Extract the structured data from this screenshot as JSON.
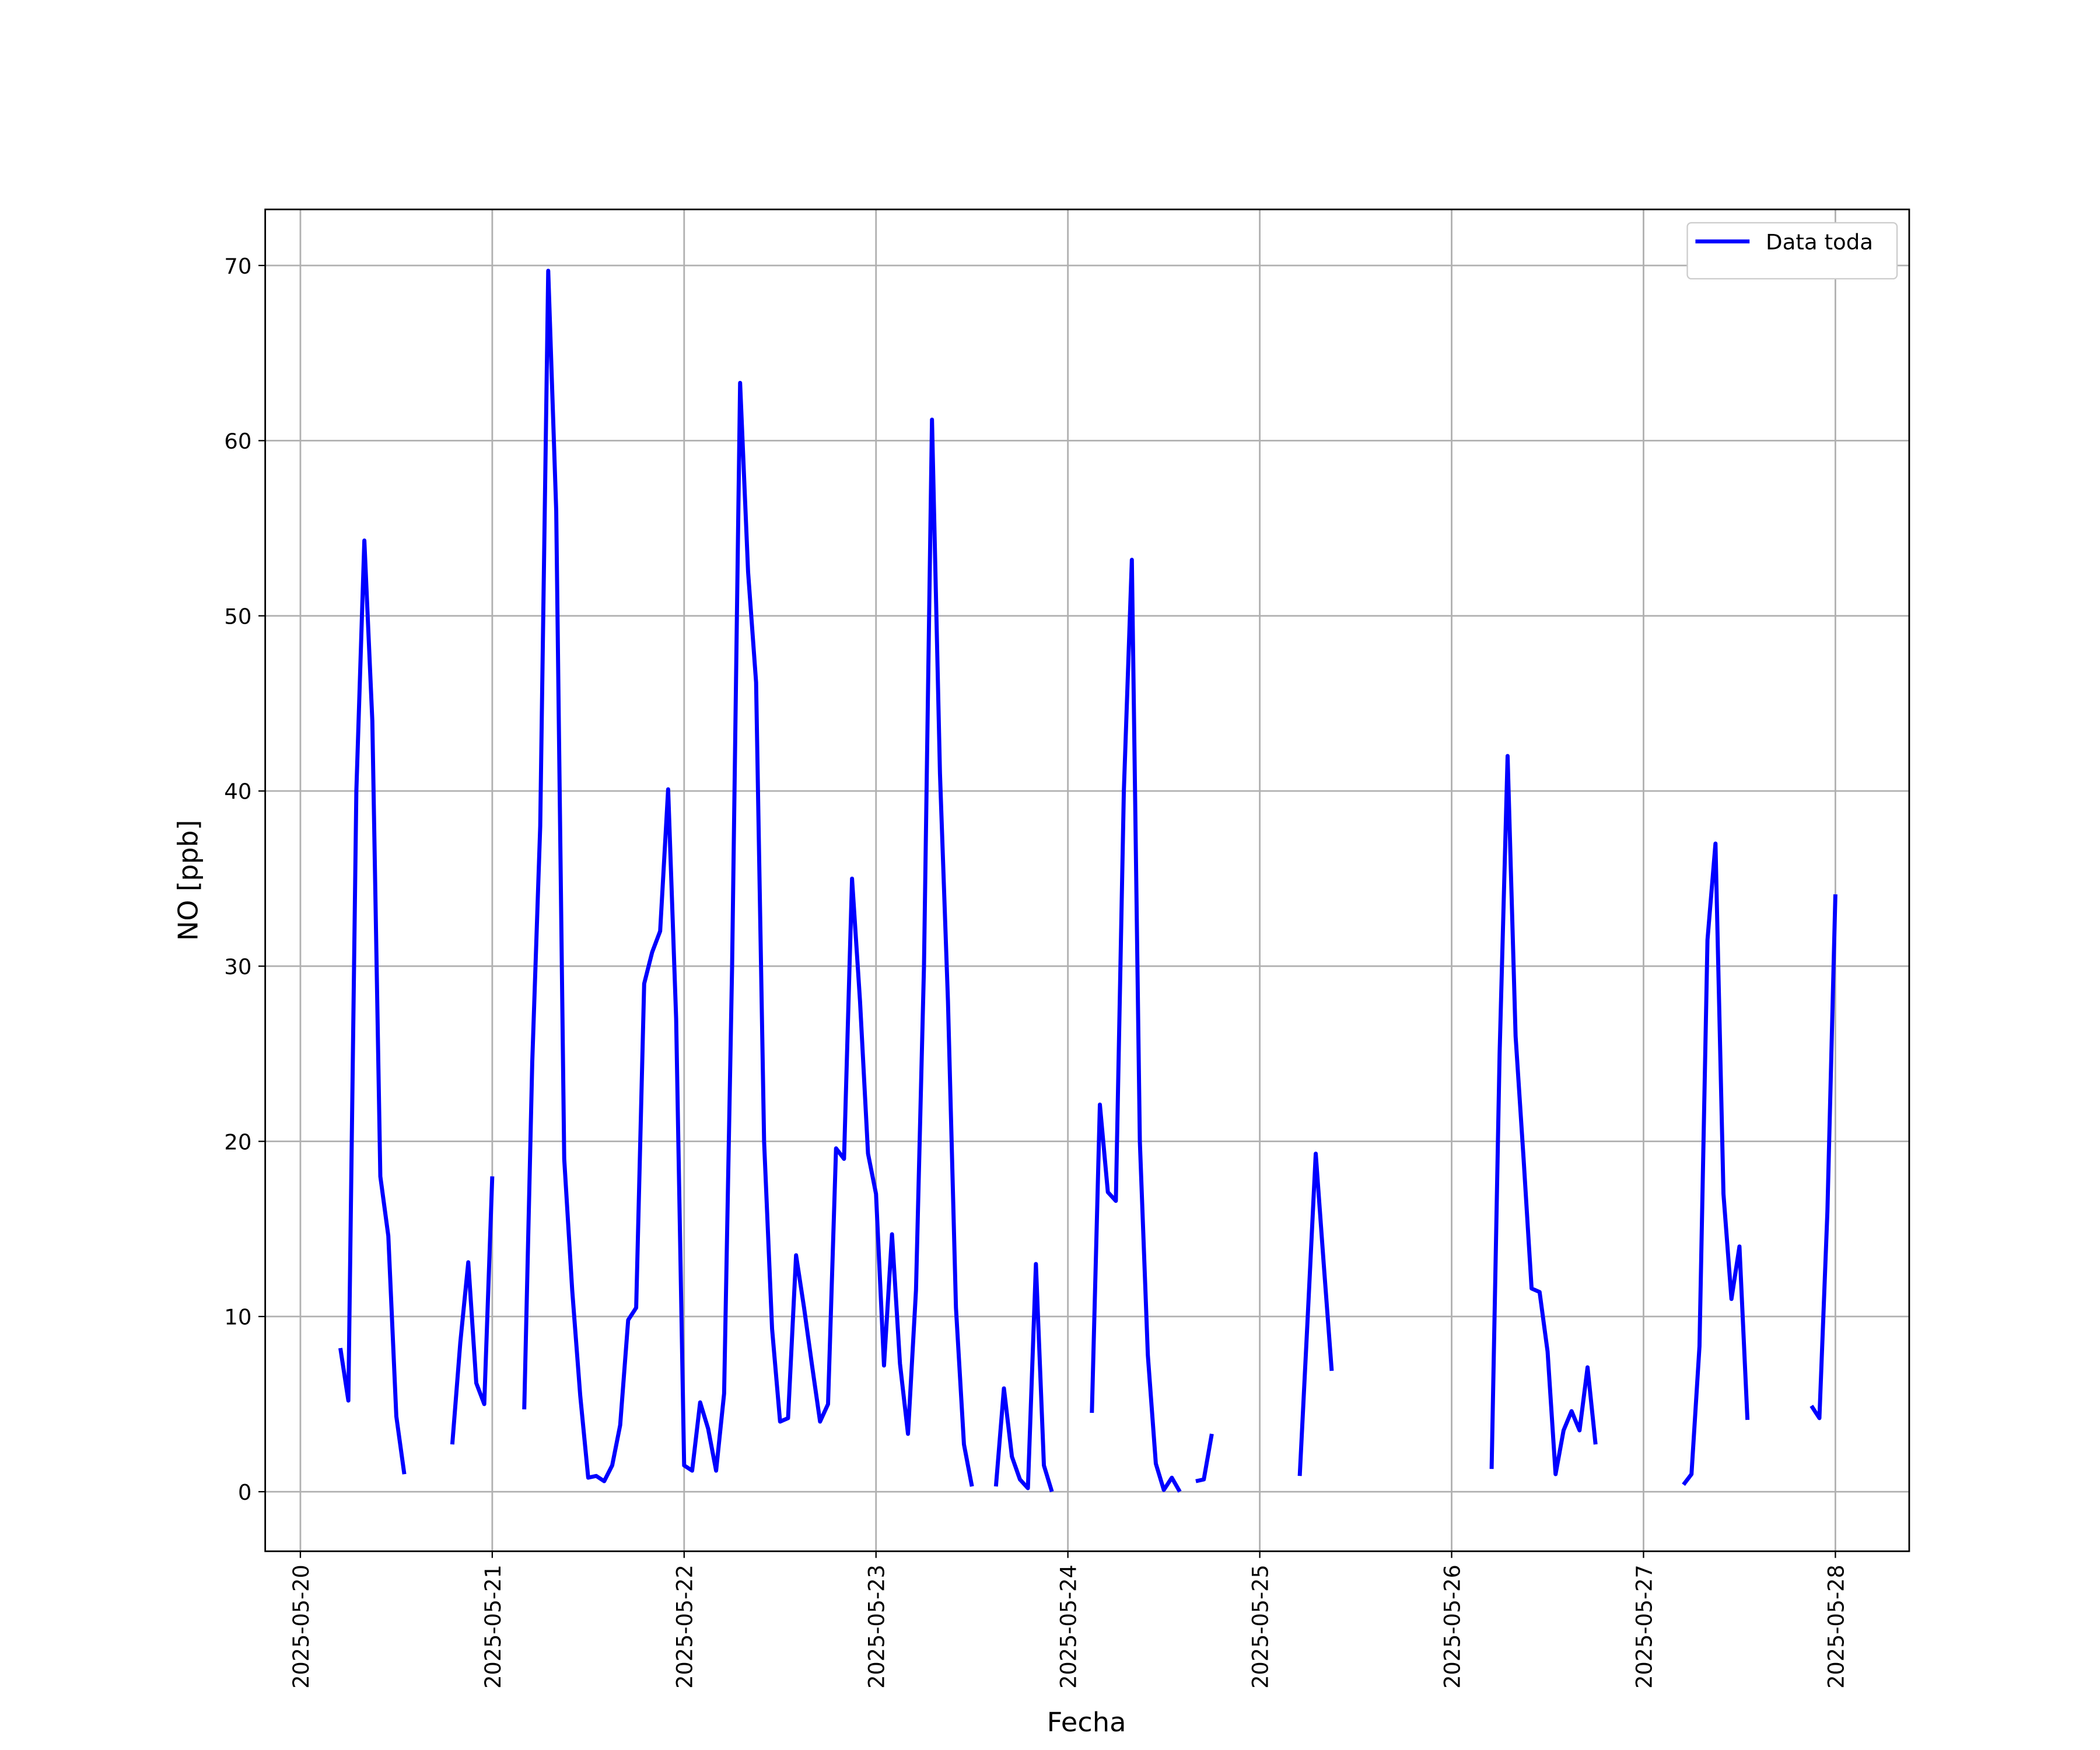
{
  "chart_data": {
    "type": "line",
    "xlabel": "Fecha",
    "ylabel": "NO [ppb]",
    "xlim": [
      "2025-05-19 19:36",
      "2025-05-28 09:14"
    ],
    "xticks": [
      "2025-05-20",
      "2025-05-21",
      "2025-05-22",
      "2025-05-23",
      "2025-05-24",
      "2025-05-25",
      "2025-05-26",
      "2025-05-27",
      "2025-05-28"
    ],
    "ylim": [
      -3.4,
      73.2
    ],
    "yticks": [
      0,
      10,
      20,
      30,
      40,
      50,
      60,
      70
    ],
    "grid": true,
    "legend": "upper right",
    "x": [
      "2025-05-20 05:00",
      "2025-05-20 06:00",
      "2025-05-20 07:00",
      "2025-05-20 08:00",
      "2025-05-20 09:00",
      "2025-05-20 10:00",
      "2025-05-20 11:00",
      "2025-05-20 12:00",
      "2025-05-20 13:00",
      "2025-05-20 16:00",
      "2025-05-20 19:00",
      "2025-05-20 20:00",
      "2025-05-20 21:00",
      "2025-05-20 22:00",
      "2025-05-20 23:00",
      "2025-05-21 00:00",
      "2025-05-21 02:00",
      "2025-05-21 04:00",
      "2025-05-21 05:00",
      "2025-05-21 06:00",
      "2025-05-21 07:00",
      "2025-05-21 08:00",
      "2025-05-21 09:00",
      "2025-05-21 10:00",
      "2025-05-21 11:00",
      "2025-05-21 12:00",
      "2025-05-21 13:00",
      "2025-05-21 14:00",
      "2025-05-21 15:00",
      "2025-05-21 16:00",
      "2025-05-21 17:00",
      "2025-05-21 18:00",
      "2025-05-21 19:00",
      "2025-05-21 20:00",
      "2025-05-21 21:00",
      "2025-05-21 22:00",
      "2025-05-21 23:00",
      "2025-05-22 00:00",
      "2025-05-22 01:00",
      "2025-05-22 02:00",
      "2025-05-22 03:00",
      "2025-05-22 04:00",
      "2025-05-22 05:00",
      "2025-05-22 06:00",
      "2025-05-22 07:00",
      "2025-05-22 08:00",
      "2025-05-22 09:00",
      "2025-05-22 10:00",
      "2025-05-22 11:00",
      "2025-05-22 12:00",
      "2025-05-22 13:00",
      "2025-05-22 14:00",
      "2025-05-22 15:00",
      "2025-05-22 16:00",
      "2025-05-22 17:00",
      "2025-05-22 18:00",
      "2025-05-22 19:00",
      "2025-05-22 20:00",
      "2025-05-22 21:00",
      "2025-05-22 22:00",
      "2025-05-22 23:00",
      "2025-05-23 00:00",
      "2025-05-23 01:00",
      "2025-05-23 02:00",
      "2025-05-23 03:00",
      "2025-05-23 04:00",
      "2025-05-23 05:00",
      "2025-05-23 06:00",
      "2025-05-23 07:00",
      "2025-05-23 08:00",
      "2025-05-23 09:00",
      "2025-05-23 10:00",
      "2025-05-23 11:00",
      "2025-05-23 12:00",
      "2025-05-23 13:00",
      "2025-05-23 15:00",
      "2025-05-23 16:00",
      "2025-05-23 17:00",
      "2025-05-23 18:00",
      "2025-05-23 19:00",
      "2025-05-23 20:00",
      "2025-05-23 21:00",
      "2025-05-23 22:00",
      "2025-05-23 23:00",
      "2025-05-24 03:00",
      "2025-05-24 04:00",
      "2025-05-24 05:00",
      "2025-05-24 06:00",
      "2025-05-24 07:00",
      "2025-05-24 08:00",
      "2025-05-24 09:00",
      "2025-05-24 10:00",
      "2025-05-24 11:00",
      "2025-05-24 12:00",
      "2025-05-24 13:00",
      "2025-05-24 14:00",
      "2025-05-24 15:00",
      "2025-05-24 16:00",
      "2025-05-24 17:00",
      "2025-05-24 18:00",
      "2025-05-24 19:00",
      "2025-05-25 05:00",
      "2025-05-25 06:00",
      "2025-05-25 07:00",
      "2025-05-25 08:00",
      "2025-05-25 09:00",
      "2025-05-25 10:00",
      "2025-05-26 05:00",
      "2025-05-26 06:00",
      "2025-05-26 07:00",
      "2025-05-26 08:00",
      "2025-05-26 09:00",
      "2025-05-26 10:00",
      "2025-05-26 11:00",
      "2025-05-26 12:00",
      "2025-05-26 13:00",
      "2025-05-26 14:00",
      "2025-05-26 15:00",
      "2025-05-26 16:00",
      "2025-05-26 17:00",
      "2025-05-26 18:00",
      "2025-05-26 19:00",
      "2025-05-27 05:00",
      "2025-05-27 06:00",
      "2025-05-27 07:00",
      "2025-05-27 08:00",
      "2025-05-27 09:00",
      "2025-05-27 10:00",
      "2025-05-27 11:00",
      "2025-05-27 12:00",
      "2025-05-27 13:00",
      "2025-05-27 14:00",
      "2025-05-27 21:00",
      "2025-05-27 22:00",
      "2025-05-27 23:00",
      "2025-05-28 00:00"
    ],
    "series": [
      {
        "name": "Data toda",
        "color": "#0000ff",
        "values": [
          8.2,
          5.2,
          40,
          54.3,
          44,
          18,
          14.6,
          4.3,
          1.0,
          null,
          2.7,
          8.5,
          13.1,
          6.2,
          5.0,
          18.0,
          null,
          4.7,
          24.5,
          38,
          69.7,
          56,
          19,
          11.5,
          5.5,
          0.8,
          0.9,
          0.6,
          1.5,
          3.8,
          9.8,
          10.5,
          29,
          30.8,
          32,
          40.1,
          27,
          1.5,
          1.2,
          5.1,
          3.6,
          1.2,
          5.6,
          30,
          63.3,
          52.5,
          46.2,
          20,
          9.3,
          4.0,
          4.2,
          13.5,
          10.5,
          7.2,
          4.0,
          5.0,
          19.6,
          19.0,
          35,
          28,
          19.3,
          17,
          7.2,
          14.7,
          7.3,
          3.3,
          11.5,
          30,
          61.2,
          41,
          28,
          10.5,
          2.7,
          0.3,
          null,
          0.3,
          5.9,
          2.0,
          0.7,
          0.2,
          13,
          1.5,
          0.0,
          null,
          4.5,
          22.1,
          17.1,
          16.6,
          40,
          53.2,
          20,
          7.8,
          1.6,
          0.1,
          0.8,
          0.0,
          null,
          0.6,
          0.7,
          3.3,
          null,
          0.9,
          10,
          19.3,
          13,
          6.9,
          null,
          1.3,
          25,
          42,
          26,
          19,
          11.6,
          11.4,
          8,
          1.0,
          3.5,
          4.6,
          3.5,
          7.1,
          2.7,
          null,
          0.4,
          1.0,
          8.3,
          31.5,
          37,
          17,
          11,
          14,
          4.1,
          null,
          4.9,
          4.2,
          16,
          34.1
        ]
      }
    ]
  }
}
